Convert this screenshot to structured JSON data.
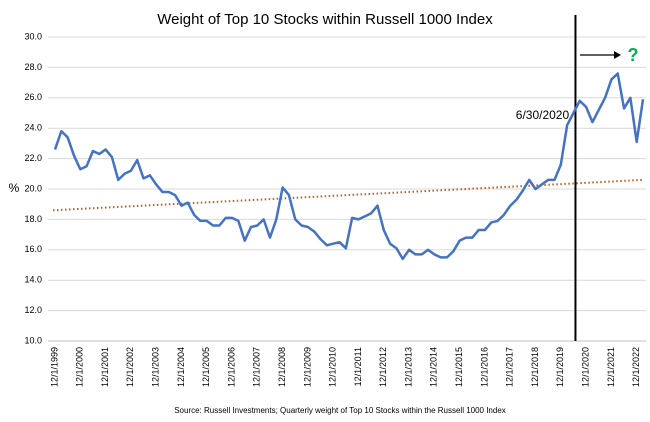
{
  "chart_data": {
    "type": "line",
    "title": "Weight of Top 10 Stocks within Russell 1000 Index",
    "y_label": "%",
    "source": "Source: Russell Investments; Quarterly weight of Top 10 Stocks within the Russell 1000 Index",
    "categories": [
      "12/1/1999",
      null,
      null,
      null,
      "12/1/2000",
      null,
      null,
      null,
      "12/1/2001",
      null,
      null,
      null,
      "12/1/2002",
      null,
      null,
      null,
      "12/1/2003",
      null,
      null,
      null,
      "12/1/2004",
      null,
      null,
      null,
      "12/1/2005",
      null,
      null,
      null,
      "12/1/2006",
      null,
      null,
      null,
      "12/1/2007",
      null,
      null,
      null,
      "12/1/2008",
      null,
      null,
      null,
      "12/1/2009",
      null,
      null,
      null,
      "12/1/2010",
      null,
      null,
      null,
      "12/1/2011",
      null,
      null,
      null,
      "12/1/2012",
      null,
      null,
      null,
      "12/1/2013",
      null,
      null,
      null,
      "12/1/2014",
      null,
      null,
      null,
      "12/1/2015",
      null,
      null,
      null,
      "12/1/2016",
      null,
      null,
      null,
      "12/1/2017",
      null,
      null,
      null,
      "12/1/2018",
      null,
      null,
      null,
      "12/1/2019",
      null,
      null,
      null,
      "12/1/2020",
      null,
      null,
      null,
      "12/1/2021",
      null,
      null,
      null,
      "12/1/2022",
      null
    ],
    "series": [
      {
        "name": "Weight",
        "color": "#4472c4",
        "values": [
          22.6,
          23.8,
          23.4,
          22.2,
          21.3,
          21.5,
          22.5,
          22.3,
          22.6,
          22.1,
          20.6,
          21.0,
          21.2,
          21.9,
          20.7,
          20.9,
          20.3,
          19.8,
          19.8,
          19.6,
          18.9,
          19.1,
          18.3,
          17.9,
          17.9,
          17.6,
          17.6,
          18.1,
          18.1,
          17.9,
          16.6,
          17.5,
          17.6,
          18.0,
          16.8,
          18.0,
          20.1,
          19.6,
          18.0,
          17.6,
          17.5,
          17.2,
          16.7,
          16.3,
          16.4,
          16.5,
          16.1,
          18.1,
          18.0,
          18.2,
          18.4,
          18.9,
          17.3,
          16.4,
          16.1,
          15.4,
          16.0,
          15.7,
          15.7,
          16.0,
          15.7,
          15.5,
          15.5,
          15.9,
          16.6,
          16.8,
          16.8,
          17.3,
          17.3,
          17.8,
          17.9,
          18.3,
          18.9,
          19.3,
          19.9,
          20.6,
          20.0,
          20.3,
          20.6,
          20.6,
          21.6,
          24.2,
          25.0,
          25.8,
          25.4,
          24.4,
          25.2,
          26.0,
          27.2,
          27.6,
          25.3,
          26.0,
          23.1,
          25.9
        ]
      }
    ],
    "trendline": {
      "start": 18.6,
      "end": 20.6,
      "color": "#c55a11"
    },
    "reference_line": {
      "label": "6/30/2020",
      "color": "#000000"
    },
    "annotation": {
      "text": "?",
      "color": "#00b050"
    },
    "ylim": [
      10,
      30
    ],
    "yticks": [
      {
        "value": 10,
        "label": "10.0"
      },
      {
        "value": 12,
        "label": "12.0"
      },
      {
        "value": 14,
        "label": "14.0"
      },
      {
        "value": 16,
        "label": "16.0"
      },
      {
        "value": 18,
        "label": "18.0"
      },
      {
        "value": 20,
        "label": "20.0"
      },
      {
        "value": 22,
        "label": "22.0"
      },
      {
        "value": 24,
        "label": "24.0"
      },
      {
        "value": 26,
        "label": "26.0"
      },
      {
        "value": 28,
        "label": "28.0"
      },
      {
        "value": 30,
        "label": "30.0"
      }
    ],
    "grid": true
  }
}
